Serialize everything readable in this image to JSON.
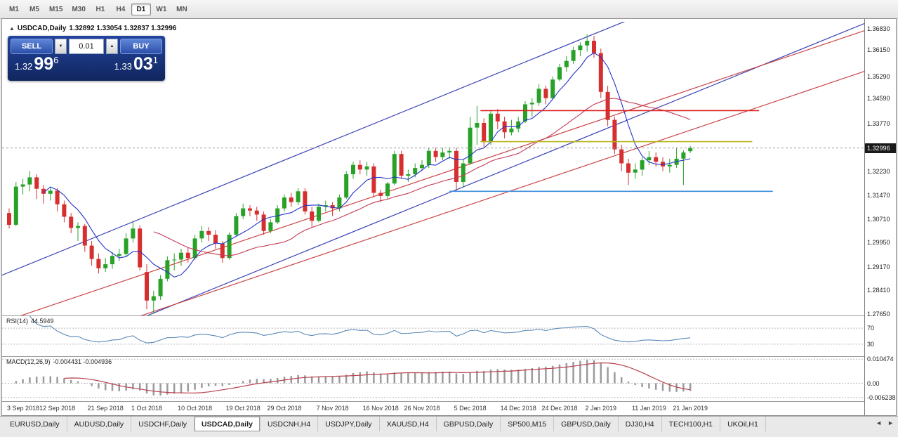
{
  "toolbar": {
    "timeframes": [
      "M1",
      "M5",
      "M15",
      "M30",
      "H1",
      "H4",
      "D1",
      "W1",
      "MN"
    ],
    "active": "D1"
  },
  "chart": {
    "title_line": {
      "symbol": "USDCAD,Daily",
      "ohlc": "1.32892 1.33054 1.32837 1.32996"
    },
    "one_click": {
      "sell_label": "SELL",
      "buy_label": "BUY",
      "volume": "0.01",
      "bid_small": "1.32",
      "bid_big": "99",
      "bid_sup": "6",
      "ask_small": "1.33",
      "ask_big": "03",
      "ask_sup": "1"
    }
  },
  "chart_data": {
    "type": "candlestick",
    "symbol": "USDCAD",
    "timeframe": "Daily",
    "ylim": [
      1.276,
      1.3706
    ],
    "y_axis": {
      "labels": [
        "1.36830",
        "1.36150",
        "1.35290",
        "1.34590",
        "1.33770",
        "1.32230",
        "1.31470",
        "1.30710",
        "1.29950",
        "1.29170",
        "1.28410",
        "1.27650"
      ],
      "current": "1.32996"
    },
    "x_axis": {
      "labels": [
        "3 Sep 2018",
        "12 Sep 2018",
        "21 Sep 2018",
        "1 Oct 2018",
        "10 Oct 2018",
        "19 Oct 2018",
        "29 Oct 2018",
        "7 Nov 2018",
        "16 Nov 2018",
        "26 Nov 2018",
        "5 Dec 2018",
        "14 Dec 2018",
        "24 Dec 2018",
        "2 Jan 2019",
        "11 Jan 2019",
        "21 Jan 2019"
      ],
      "indices": [
        0,
        7,
        14,
        20,
        27,
        34,
        40,
        47,
        54,
        60,
        67,
        74,
        80,
        86,
        93,
        99
      ]
    },
    "candles": [
      [
        1.309,
        1.3105,
        1.304,
        1.3052
      ],
      [
        1.3052,
        1.319,
        1.3048,
        1.3175
      ],
      [
        1.3175,
        1.32,
        1.315,
        1.3182
      ],
      [
        1.3182,
        1.3225,
        1.316,
        1.3205
      ],
      [
        1.3205,
        1.3215,
        1.3135,
        1.3168
      ],
      [
        1.3168,
        1.318,
        1.312,
        1.3152
      ],
      [
        1.3152,
        1.3175,
        1.313,
        1.3162
      ],
      [
        1.3162,
        1.317,
        1.3095,
        1.3118
      ],
      [
        1.3118,
        1.313,
        1.306,
        1.3078
      ],
      [
        1.3078,
        1.309,
        1.3025,
        1.3042
      ],
      [
        1.3042,
        1.306,
        1.3,
        1.3048
      ],
      [
        1.3048,
        1.3055,
        1.2965,
        1.2985
      ],
      [
        1.2985,
        1.3,
        1.292,
        1.2942
      ],
      [
        1.2942,
        1.296,
        1.2895,
        1.2912
      ],
      [
        1.2912,
        1.2945,
        1.29,
        1.2925
      ],
      [
        1.2925,
        1.2965,
        1.291,
        1.2952
      ],
      [
        1.2952,
        1.2975,
        1.2935,
        1.2958
      ],
      [
        1.2958,
        1.3025,
        1.295,
        1.3008
      ],
      [
        1.3008,
        1.3065,
        1.2995,
        1.304
      ],
      [
        1.304,
        1.305,
        1.2905,
        1.2915
      ],
      [
        1.29,
        1.2925,
        1.278,
        1.2808
      ],
      [
        1.2808,
        1.284,
        1.2765,
        1.2822
      ],
      [
        1.2822,
        1.289,
        1.281,
        1.2878
      ],
      [
        1.2878,
        1.295,
        1.287,
        1.2938
      ],
      [
        1.2938,
        1.296,
        1.2905,
        1.294
      ],
      [
        1.294,
        1.2975,
        1.292,
        1.2962
      ],
      [
        1.2962,
        1.298,
        1.293,
        1.2945
      ],
      [
        1.2945,
        1.302,
        1.294,
        1.3008
      ],
      [
        1.3008,
        1.3048,
        1.2995,
        1.3032
      ],
      [
        1.3032,
        1.3045,
        1.3,
        1.302
      ],
      [
        1.302,
        1.3035,
        1.2975,
        1.2992
      ],
      [
        1.2992,
        1.3,
        1.293,
        1.2945
      ],
      [
        1.2945,
        1.3028,
        1.294,
        1.302
      ],
      [
        1.302,
        1.309,
        1.3015,
        1.308
      ],
      [
        1.308,
        1.312,
        1.307,
        1.3105
      ],
      [
        1.3105,
        1.3115,
        1.308,
        1.3098
      ],
      [
        1.3098,
        1.311,
        1.3065,
        1.3085
      ],
      [
        1.3085,
        1.3095,
        1.302,
        1.3032
      ],
      [
        1.3032,
        1.307,
        1.3025,
        1.306
      ],
      [
        1.306,
        1.3115,
        1.3055,
        1.3105
      ],
      [
        1.3105,
        1.315,
        1.3095,
        1.314
      ],
      [
        1.314,
        1.3155,
        1.311,
        1.3125
      ],
      [
        1.3125,
        1.317,
        1.3115,
        1.316
      ],
      [
        1.316,
        1.317,
        1.3085,
        1.3095
      ],
      [
        1.3095,
        1.311,
        1.3045,
        1.3065
      ],
      [
        1.3065,
        1.312,
        1.306,
        1.311
      ],
      [
        1.311,
        1.313,
        1.3095,
        1.3115
      ],
      [
        1.3115,
        1.3125,
        1.308,
        1.3105
      ],
      [
        1.3105,
        1.315,
        1.3095,
        1.314
      ],
      [
        1.314,
        1.3225,
        1.3135,
        1.3215
      ],
      [
        1.3215,
        1.3255,
        1.32,
        1.3245
      ],
      [
        1.3245,
        1.326,
        1.3215,
        1.323
      ],
      [
        1.323,
        1.3255,
        1.321,
        1.324
      ],
      [
        1.324,
        1.325,
        1.314,
        1.3155
      ],
      [
        1.3155,
        1.3165,
        1.3125,
        1.3145
      ],
      [
        1.3145,
        1.319,
        1.3135,
        1.3185
      ],
      [
        1.3185,
        1.329,
        1.318,
        1.328
      ],
      [
        1.328,
        1.329,
        1.32,
        1.321
      ],
      [
        1.321,
        1.323,
        1.319,
        1.3215
      ],
      [
        1.3215,
        1.325,
        1.3205,
        1.3235
      ],
      [
        1.3235,
        1.326,
        1.3225,
        1.3245
      ],
      [
        1.3245,
        1.33,
        1.3235,
        1.329
      ],
      [
        1.329,
        1.33,
        1.3255,
        1.327
      ],
      [
        1.327,
        1.33,
        1.326,
        1.3285
      ],
      [
        1.3285,
        1.33,
        1.3265,
        1.329
      ],
      [
        1.329,
        1.33,
        1.316,
        1.319
      ],
      [
        1.319,
        1.3265,
        1.3175,
        1.325
      ],
      [
        1.325,
        1.34,
        1.3245,
        1.3365
      ],
      [
        1.3365,
        1.3435,
        1.331,
        1.338
      ],
      [
        1.338,
        1.3395,
        1.33,
        1.332
      ],
      [
        1.332,
        1.342,
        1.331,
        1.341
      ],
      [
        1.341,
        1.3425,
        1.336,
        1.3385
      ],
      [
        1.3385,
        1.34,
        1.333,
        1.335
      ],
      [
        1.335,
        1.339,
        1.334,
        1.3362
      ],
      [
        1.3362,
        1.34,
        1.335,
        1.3385
      ],
      [
        1.3385,
        1.345,
        1.338,
        1.344
      ],
      [
        1.344,
        1.346,
        1.34,
        1.3445
      ],
      [
        1.3445,
        1.3505,
        1.3435,
        1.349
      ],
      [
        1.349,
        1.35,
        1.344,
        1.346
      ],
      [
        1.346,
        1.353,
        1.3455,
        1.352
      ],
      [
        1.352,
        1.357,
        1.3515,
        1.356
      ],
      [
        1.356,
        1.3595,
        1.3545,
        1.358
      ],
      [
        1.358,
        1.3625,
        1.357,
        1.3615
      ],
      [
        1.3615,
        1.364,
        1.3595,
        1.363
      ],
      [
        1.363,
        1.3665,
        1.361,
        1.3645
      ],
      [
        1.3645,
        1.366,
        1.359,
        1.3605
      ],
      [
        1.3605,
        1.362,
        1.346,
        1.348
      ],
      [
        1.348,
        1.35,
        1.337,
        1.339
      ],
      [
        1.339,
        1.34,
        1.328,
        1.3295
      ],
      [
        1.3295,
        1.331,
        1.3225,
        1.325
      ],
      [
        1.325,
        1.3265,
        1.318,
        1.322
      ],
      [
        1.322,
        1.325,
        1.32,
        1.323
      ],
      [
        1.323,
        1.327,
        1.321,
        1.326
      ],
      [
        1.326,
        1.329,
        1.3245,
        1.327
      ],
      [
        1.327,
        1.3285,
        1.324,
        1.3255
      ],
      [
        1.3255,
        1.327,
        1.3225,
        1.324
      ],
      [
        1.324,
        1.3265,
        1.322,
        1.3245
      ],
      [
        1.3245,
        1.33,
        1.3235,
        1.3265
      ],
      [
        1.3265,
        1.3292,
        1.318,
        1.3285
      ],
      [
        1.32892,
        1.33054,
        1.32837,
        1.32996
      ]
    ],
    "overlays": {
      "ma_fast": {
        "type": "sma",
        "period": 6
      },
      "ma_slow": {
        "type": "sma",
        "period": 22
      },
      "trendlines": [
        {
          "name": "channel-upper-blue",
          "color": "#3b43b8",
          "p1": [
            -5,
            1.2854
          ],
          "p2": [
            130,
            1.4073
          ]
        },
        {
          "name": "channel-lower-blue",
          "color": "#3b43b8",
          "p1": [
            -5,
            1.2533
          ],
          "p2": [
            130,
            1.3752
          ]
        },
        {
          "name": "trend-red-upper",
          "color": "#cc4444",
          "p1": [
            -5,
            1.2709
          ],
          "p2": [
            130,
            1.372
          ]
        },
        {
          "name": "trend-red-lower",
          "color": "#cc4444",
          "p1": [
            -5,
            1.2578
          ],
          "p2": [
            130,
            1.3589
          ]
        }
      ],
      "hlines": [
        {
          "name": "resistance-red",
          "price": 1.342,
          "from": 68.5,
          "to": 109,
          "color": "#dd2222"
        },
        {
          "name": "resistance-olive",
          "price": 1.332,
          "from": 68.5,
          "to": 108,
          "color": "#b3b319"
        },
        {
          "name": "support-blue",
          "price": 1.316,
          "from": 64,
          "to": 111,
          "color": "#3c8ede"
        }
      ]
    },
    "indicators": {
      "rsi": {
        "label": "RSI(14)",
        "value": "44.5949",
        "period": 14,
        "levels": [
          70,
          30
        ],
        "axis": [
          "70",
          "30"
        ]
      },
      "macd": {
        "label": "MACD(12,26,9)",
        "values": "-0.004431 -0.004936",
        "fast": 12,
        "slow": 26,
        "signal": 9,
        "axis": [
          "0.010474",
          "0.00",
          "-0.006238"
        ]
      }
    },
    "colors": {
      "bull": "#27a227",
      "bear": "#d62f2f",
      "ma_fast": "#2433c8",
      "ma_slow": "#c43a55",
      "rsi": "#5b88b8",
      "macd_bar": "#9b9b9b",
      "macd_signal": "#b8414e"
    }
  },
  "tabs": {
    "items": [
      "EURUSD,Daily",
      "AUDUSD,Daily",
      "USDCHF,Daily",
      "USDCAD,Daily",
      "USDCNH,H4",
      "USDJPY,Daily",
      "XAUUSD,H4",
      "GBPUSD,Daily",
      "SP500,M15",
      "GBPUSD,Daily",
      "DJ30,H4",
      "TECH100,H1",
      "UKOil,H1"
    ],
    "active_index": 3,
    "scroll_left": "◄",
    "scroll_right": "►"
  }
}
